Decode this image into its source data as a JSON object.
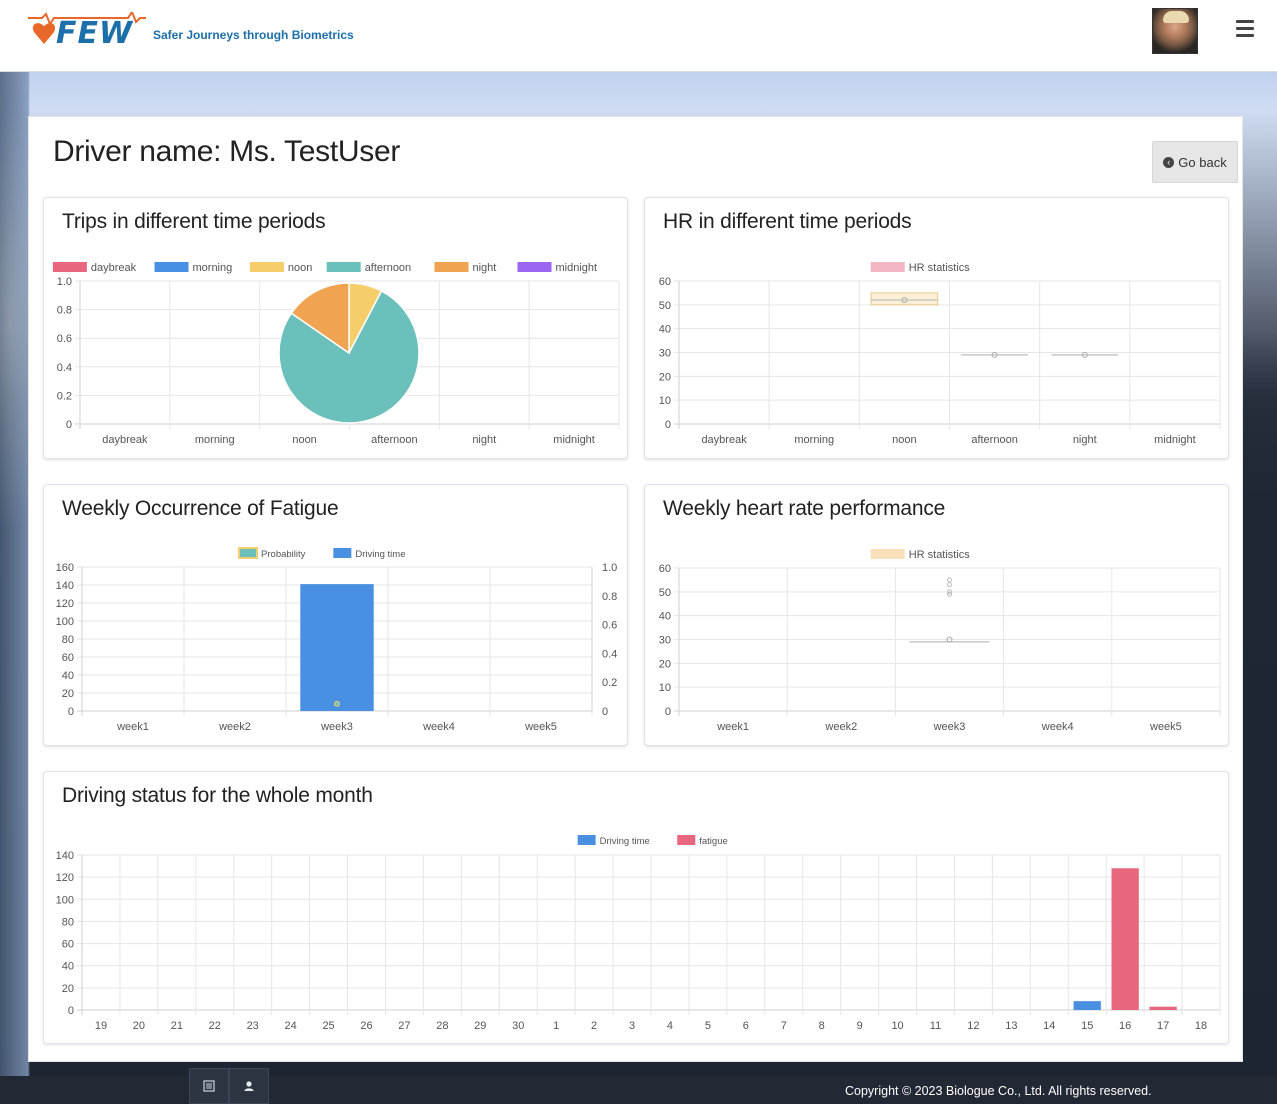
{
  "header": {
    "logo_text": "FEW",
    "tagline": "Safer Journeys through Biometrics"
  },
  "page": {
    "driver_title": "Driver name: Ms. TestUser",
    "go_back_label": "Go back"
  },
  "cards": {
    "trips": {
      "title": "Trips in different time periods"
    },
    "hr": {
      "title": "HR in different time periods"
    },
    "fatigue": {
      "title": "Weekly Occurrence of Fatigue"
    },
    "weekly_hr": {
      "title": "Weekly heart rate performance"
    },
    "month": {
      "title": "Driving status for the whole month"
    }
  },
  "footer": {
    "copyright": "Copyright © 2023 Biologue Co., Ltd. All rights reserved.",
    "tabs": [
      "list-icon",
      "user-icon"
    ]
  },
  "chart_data": [
    {
      "id": "trips",
      "type": "pie",
      "title": "Trips in different time periods",
      "categories": [
        "daybreak",
        "morning",
        "noon",
        "afternoon",
        "night",
        "midnight"
      ],
      "values": [
        0,
        0,
        1,
        10,
        2,
        0
      ],
      "colors": [
        "#e8677e",
        "#4a90e2",
        "#f5cd6b",
        "#6cc0bb",
        "#f0a350",
        "#9b66f0"
      ],
      "ylim": [
        0,
        1.0
      ],
      "yticks": [
        "1.0",
        "0.8",
        "0.6",
        "0.4",
        "0.2",
        "0"
      ],
      "legend_position": "top",
      "grid": true
    },
    {
      "id": "hr",
      "type": "boxplot",
      "title": "HR in different time periods",
      "categories": [
        "daybreak",
        "morning",
        "noon",
        "afternoon",
        "night",
        "midnight"
      ],
      "series": [
        {
          "name": "HR statistics",
          "color": "#f3b6c4"
        }
      ],
      "boxes": [
        null,
        null,
        {
          "min": 50,
          "q1": 50,
          "median": 52,
          "q3": 55,
          "max": 55,
          "mean": 52
        },
        {
          "min": 29,
          "q1": 29,
          "median": 29,
          "q3": 29,
          "max": 29,
          "mean": 29
        },
        {
          "min": 29,
          "q1": 29,
          "median": 29,
          "q3": 29,
          "max": 29,
          "mean": 29
        },
        null
      ],
      "ylim": [
        0,
        60
      ],
      "yticks": [
        "60",
        "50",
        "40",
        "30",
        "20",
        "10",
        "0"
      ],
      "legend_position": "top",
      "grid": true
    },
    {
      "id": "fatigue",
      "type": "bar",
      "title": "Weekly Occurrence of Fatigue",
      "categories": [
        "week1",
        "week2",
        "week3",
        "week4",
        "week5"
      ],
      "series": [
        {
          "name": "Driving time",
          "values": [
            0,
            0,
            141,
            0,
            0
          ],
          "color": "#4a90e2",
          "axis": "left"
        },
        {
          "name": "Probability",
          "values": [
            null,
            null,
            0.05,
            null,
            null
          ],
          "color": "#6cc0bb",
          "axis": "right"
        }
      ],
      "ylim": [
        0,
        160
      ],
      "yticks": [
        "160",
        "140",
        "120",
        "100",
        "80",
        "60",
        "40",
        "20",
        "0"
      ],
      "y2lim": [
        0,
        1.0
      ],
      "y2ticks": [
        "1.0",
        "0.8",
        "0.6",
        "0.4",
        "0.2",
        "0"
      ],
      "legend_position": "top",
      "grid": true
    },
    {
      "id": "weekly_hr",
      "type": "boxplot",
      "title": "Weekly heart rate performance",
      "categories": [
        "week1",
        "week2",
        "week3",
        "week4",
        "week5"
      ],
      "series": [
        {
          "name": "HR statistics",
          "color": "#f9dfb8"
        }
      ],
      "boxes": [
        null,
        null,
        {
          "min": 29,
          "q1": 29,
          "median": 29,
          "q3": 29,
          "max": 29,
          "mean": 30,
          "outliers": [
            49,
            50,
            53,
            55
          ]
        },
        null,
        null
      ],
      "ylim": [
        0,
        60
      ],
      "yticks": [
        "60",
        "50",
        "40",
        "30",
        "20",
        "10",
        "0"
      ],
      "legend_position": "top",
      "grid": true
    },
    {
      "id": "month",
      "type": "bar",
      "title": "Driving status for the whole month",
      "categories": [
        "19",
        "20",
        "21",
        "22",
        "23",
        "24",
        "25",
        "26",
        "27",
        "28",
        "29",
        "30",
        "1",
        "2",
        "3",
        "4",
        "5",
        "6",
        "7",
        "8",
        "9",
        "10",
        "11",
        "12",
        "13",
        "14",
        "15",
        "16",
        "17",
        "18"
      ],
      "series": [
        {
          "name": "Driving time",
          "color": "#4a90e2",
          "values": [
            0,
            0,
            0,
            0,
            0,
            0,
            0,
            0,
            0,
            0,
            0,
            0,
            0,
            0,
            0,
            0,
            0,
            0,
            0,
            0,
            0,
            0,
            0,
            0,
            0,
            0,
            8,
            0,
            0,
            0
          ]
        },
        {
          "name": "fatigue",
          "color": "#e8677e",
          "values": [
            0,
            0,
            0,
            0,
            0,
            0,
            0,
            0,
            0,
            0,
            0,
            0,
            0,
            0,
            0,
            0,
            0,
            0,
            0,
            0,
            0,
            0,
            0,
            0,
            0,
            0,
            0,
            128,
            3,
            0
          ]
        }
      ],
      "ylim": [
        0,
        140
      ],
      "yticks": [
        "140",
        "120",
        "100",
        "80",
        "60",
        "40",
        "20",
        "0"
      ],
      "legend_position": "top",
      "grid": true
    }
  ]
}
